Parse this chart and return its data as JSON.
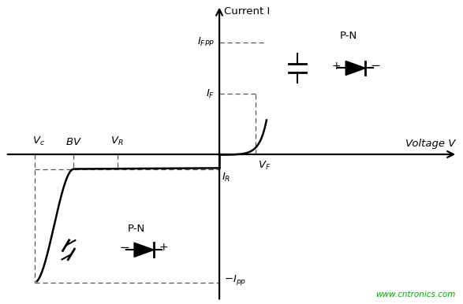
{
  "bg_color": "#ffffff",
  "axis_color": "#000000",
  "figsize": [
    5.87,
    3.86
  ],
  "dpi": 100,
  "xlabel": "Voltage V",
  "ylabel": "Current I",
  "website": "www.cntronics.com",
  "website_color": "#00aa00",
  "xlim": [
    -4.5,
    5.0
  ],
  "ylim": [
    -3.2,
    3.3
  ],
  "x_vc": -3.8,
  "x_bv": -3.0,
  "x_vr": -2.1,
  "x_vf": 0.75,
  "y_ifpp": 2.4,
  "y_if": 1.3,
  "y_ir": -0.32,
  "y_ipp": -2.75,
  "cap_top_x": 1.6,
  "cap_top_y": 1.85,
  "diode_top_x": 2.8,
  "diode_top_y": 1.85,
  "pn_top_x": 2.65,
  "pn_top_y": 2.55,
  "cap_bot_x": -3.1,
  "cap_bot_y": -2.05,
  "diode_bot_x": -1.55,
  "diode_bot_y": -2.05,
  "pn_bot_x": -1.7,
  "pn_bot_y": -1.6
}
